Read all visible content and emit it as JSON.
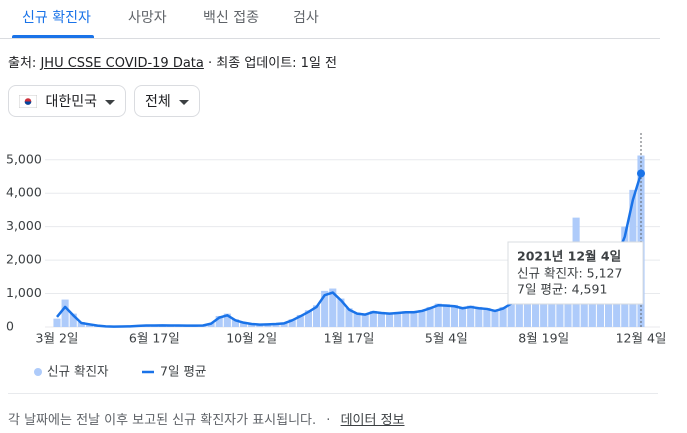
{
  "tabs": [
    "신규 확진자",
    "사망자",
    "백신 접종",
    "검사"
  ],
  "source": {
    "prefix": "출처:",
    "link": "JHU CSSE COVID-19 Data",
    "updated": "· 최종 업데이트: 1일 전"
  },
  "filters": [
    "대한민국",
    "전체"
  ],
  "chart_data": {
    "type": "bar-line",
    "categories": [
      "3월 2일",
      null,
      null,
      null,
      null,
      null,
      null,
      null,
      null,
      null,
      null,
      null,
      "6월 17일",
      null,
      null,
      null,
      null,
      null,
      null,
      null,
      null,
      null,
      null,
      null,
      "10월 2일",
      null,
      null,
      null,
      null,
      null,
      null,
      null,
      null,
      null,
      null,
      null,
      "1월 17일",
      null,
      null,
      null,
      null,
      null,
      null,
      null,
      null,
      null,
      null,
      null,
      "5월 4일",
      null,
      null,
      null,
      null,
      null,
      null,
      null,
      null,
      null,
      null,
      null,
      "8월 19일",
      null,
      null,
      null,
      null,
      null,
      null,
      null,
      null,
      null,
      null,
      null,
      "12월 4일"
    ],
    "series": [
      {
        "name": "신규 확진자",
        "color": "#aecbfa",
        "values": [
          250,
          820,
          400,
          150,
          90,
          50,
          30,
          15,
          20,
          30,
          45,
          55,
          50,
          60,
          50,
          55,
          45,
          50,
          55,
          120,
          330,
          400,
          230,
          150,
          100,
          80,
          95,
          110,
          130,
          230,
          360,
          500,
          650,
          1080,
          1150,
          850,
          560,
          430,
          390,
          480,
          450,
          430,
          450,
          470,
          480,
          510,
          600,
          700,
          680,
          660,
          600,
          640,
          600,
          570,
          520,
          600,
          760,
          1320,
          1560,
          1800,
          2000,
          1950,
          1800,
          2050,
          3270,
          1900,
          1750,
          1850,
          1700,
          2300,
          3000,
          4100,
          5127
        ]
      },
      {
        "name": "7일 평균",
        "color": "#1a73e8",
        "values": [
          300,
          600,
          350,
          120,
          80,
          40,
          20,
          10,
          15,
          20,
          35,
          45,
          45,
          50,
          45,
          45,
          40,
          40,
          45,
          100,
          280,
          350,
          200,
          130,
          90,
          70,
          80,
          90,
          110,
          200,
          320,
          450,
          600,
          950,
          1030,
          800,
          520,
          400,
          370,
          450,
          420,
          400,
          420,
          440,
          440,
          480,
          560,
          650,
          640,
          620,
          560,
          600,
          560,
          540,
          480,
          550,
          700,
          1200,
          1450,
          1650,
          1850,
          1800,
          1700,
          1900,
          2050,
          1700,
          1600,
          1700,
          1550,
          2100,
          2700,
          3800,
          4591
        ]
      }
    ],
    "ylim": [
      0,
      5800
    ],
    "yticks": [
      0,
      {
        "value": 1000,
        "label": "1,000"
      },
      {
        "value": 2000,
        "label": "2,000"
      },
      {
        "value": 3000,
        "label": "3,000"
      },
      {
        "value": 4000,
        "label": "4,000"
      },
      {
        "value": 5000,
        "label": "5,000"
      }
    ],
    "grid": true,
    "tooltip": {
      "date": "2021년 12월 4일",
      "lines": [
        "신규 확진자: 5,127",
        "7일 평균: 4,591"
      ]
    }
  },
  "footer": {
    "note": "각 날짜에는 전날 이후 보고된 신규 확진자가 표시됩니다.",
    "sep": "·",
    "link": "데이터 정보"
  }
}
